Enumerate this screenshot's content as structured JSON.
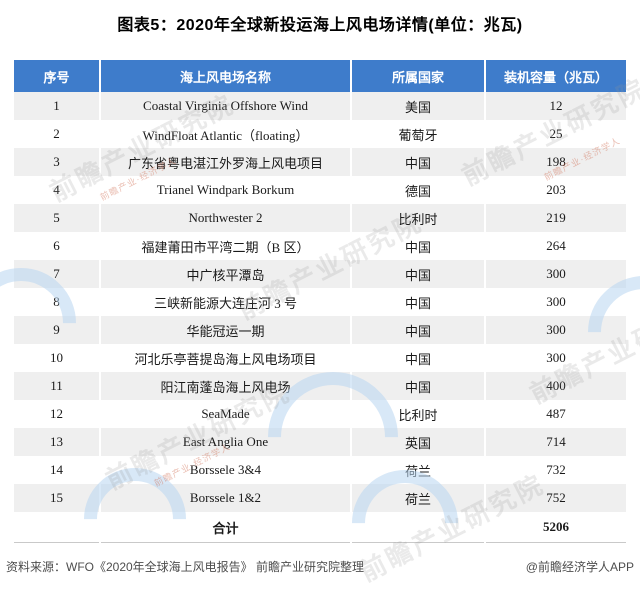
{
  "page": {
    "title": "图表5：2020年全球新投运海上风电场详情(单位：兆瓦)"
  },
  "colors": {
    "header_bg": "#3E7CCB",
    "header_text": "#FFFFFF",
    "row_stripe": "#EFEFEF",
    "row_plain": "#FFFFFF",
    "body_text": "#1A1A1A",
    "footer_text": "#4D4D4D",
    "watermark_blue": "#B9D5F0",
    "watermark_gray": "#969696",
    "watermark_red": "#D16E55"
  },
  "chart_data": {
    "type": "table",
    "title": "图表5：2020年全球新投运海上风电场详情(单位：兆瓦)",
    "unit": "兆瓦",
    "columns": [
      "序号",
      "海上风电场名称",
      "所属国家",
      "装机容量（兆瓦）"
    ],
    "rows": [
      {
        "no": "1",
        "name": "Coastal Virginia Offshore Wind",
        "country": "美国",
        "capacity": "12"
      },
      {
        "no": "2",
        "name": "WindFloat Atlantic（floating）",
        "country": "葡萄牙",
        "capacity": "25"
      },
      {
        "no": "3",
        "name": "广东省粤电湛江外罗海上风电项目",
        "country": "中国",
        "capacity": "198"
      },
      {
        "no": "4",
        "name": "Trianel Windpark Borkum",
        "country": "德国",
        "capacity": "203"
      },
      {
        "no": "5",
        "name": "Northwester 2",
        "country": "比利时",
        "capacity": "219"
      },
      {
        "no": "6",
        "name": "福建莆田市平湾二期（B 区）",
        "country": "中国",
        "capacity": "264"
      },
      {
        "no": "7",
        "name": "中广核平潭岛",
        "country": "中国",
        "capacity": "300"
      },
      {
        "no": "8",
        "name": "三峡新能源大连庄河 3 号",
        "country": "中国",
        "capacity": "300"
      },
      {
        "no": "9",
        "name": "华能冠运一期",
        "country": "中国",
        "capacity": "300"
      },
      {
        "no": "10",
        "name": "河北乐亭菩提岛海上风电场项目",
        "country": "中国",
        "capacity": "300"
      },
      {
        "no": "11",
        "name": "阳江南蓬岛海上风电场",
        "country": "中国",
        "capacity": "400"
      },
      {
        "no": "12",
        "name": "SeaMade",
        "country": "比利时",
        "capacity": "487"
      },
      {
        "no": "13",
        "name": "East Anglia One",
        "country": "英国",
        "capacity": "714"
      },
      {
        "no": "14",
        "name": "Borssele 3&4",
        "country": "荷兰",
        "capacity": "732"
      },
      {
        "no": "15",
        "name": "Borssele 1&2",
        "country": "荷兰",
        "capacity": "752"
      }
    ],
    "total_label": "合计",
    "total_capacity": "5206"
  },
  "footer": {
    "source": "资料来源：WFO《2020年全球海上风电报告》 前瞻产业研究院整理",
    "credit": "@前瞻经济学人APP"
  },
  "watermark": {
    "text": "前瞻产业研究院",
    "sub": "前瞻产业·经济学人",
    "logo": "qianzhan-swoosh-logo"
  }
}
